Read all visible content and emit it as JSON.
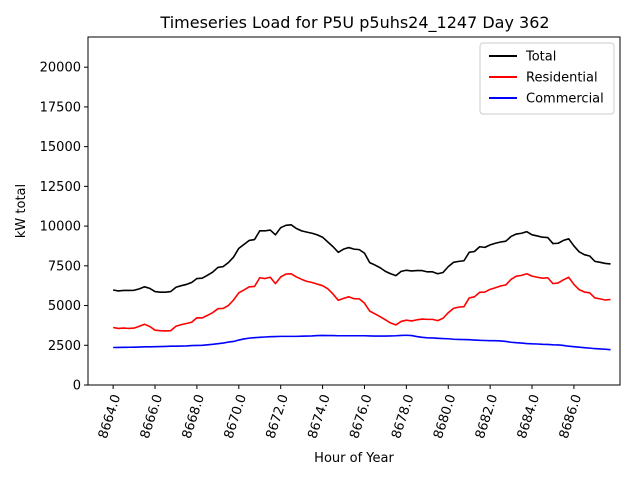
{
  "chart_data": {
    "type": "line",
    "title": "Timeseries Load for P5U p5uhs24_1247  Day 362",
    "xlabel": "Hour of Year",
    "ylabel": "kW total",
    "xlim": [
      8662.8,
      8688.2
    ],
    "ylim": [
      0,
      21900
    ],
    "x_ticks": [
      8664,
      8666,
      8668,
      8670,
      8672,
      8674,
      8676,
      8678,
      8680,
      8682,
      8684,
      8686
    ],
    "x_tick_labels": [
      "8664.0",
      "8666.0",
      "8668.0",
      "8670.0",
      "8672.0",
      "8674.0",
      "8676.0",
      "8678.0",
      "8680.0",
      "8682.0",
      "8684.0",
      "8686.0"
    ],
    "y_ticks": [
      0,
      2500,
      5000,
      7500,
      10000,
      12500,
      15000,
      17500,
      20000
    ],
    "y_tick_labels": [
      "0",
      "2500",
      "5000",
      "7500",
      "10000",
      "12500",
      "15000",
      "17500",
      "20000"
    ],
    "legend_position": "top-right",
    "x": [
      8664.0,
      8664.25,
      8664.5,
      8664.75,
      8665.0,
      8665.25,
      8665.5,
      8665.75,
      8666.0,
      8666.25,
      8666.5,
      8666.75,
      8667.0,
      8667.25,
      8667.5,
      8667.75,
      8668.0,
      8668.25,
      8668.5,
      8668.75,
      8669.0,
      8669.25,
      8669.5,
      8669.75,
      8670.0,
      8670.25,
      8670.5,
      8670.75,
      8671.0,
      8671.25,
      8671.5,
      8671.75,
      8672.0,
      8672.25,
      8672.5,
      8672.75,
      8673.0,
      8673.25,
      8673.5,
      8673.75,
      8674.0,
      8674.25,
      8674.5,
      8674.75,
      8675.0,
      8675.25,
      8675.5,
      8675.75,
      8676.0,
      8676.25,
      8676.5,
      8676.75,
      8677.0,
      8677.25,
      8677.5,
      8677.75,
      8678.0,
      8678.25,
      8678.5,
      8678.75,
      8679.0,
      8679.25,
      8679.5,
      8679.75,
      8680.0,
      8680.25,
      8680.5,
      8680.75,
      8681.0,
      8681.25,
      8681.5,
      8681.75,
      8682.0,
      8682.25,
      8682.5,
      8682.75,
      8683.0,
      8683.25,
      8683.5,
      8683.75,
      8684.0,
      8684.25,
      8684.5,
      8684.75,
      8685.0,
      8685.25,
      8685.5,
      8685.75,
      8686.0,
      8686.25,
      8686.5,
      8686.75,
      8687.0,
      8687.25,
      8687.5,
      8687.75
    ],
    "series": [
      {
        "name": "Total",
        "color": "#000000",
        "values": [
          5980,
          5920,
          5950,
          5950,
          5960,
          6050,
          6180,
          6080,
          5880,
          5840,
          5840,
          5880,
          6150,
          6250,
          6330,
          6450,
          6700,
          6720,
          6900,
          7100,
          7400,
          7450,
          7700,
          8050,
          8600,
          8850,
          9100,
          9150,
          9700,
          9700,
          9750,
          9450,
          9900,
          10050,
          10080,
          9850,
          9700,
          9620,
          9550,
          9450,
          9300,
          9000,
          8700,
          8350,
          8550,
          8650,
          8550,
          8520,
          8300,
          7700,
          7550,
          7380,
          7150,
          7000,
          6880,
          7150,
          7220,
          7180,
          7200,
          7200,
          7120,
          7120,
          7000,
          7080,
          7450,
          7720,
          7780,
          7820,
          8350,
          8400,
          8700,
          8660,
          8820,
          8920,
          9000,
          9050,
          9350,
          9500,
          9550,
          9650,
          9450,
          9380,
          9300,
          9280,
          8900,
          8920,
          9100,
          9200,
          8750,
          8380,
          8200,
          8120,
          7780,
          7720,
          7650,
          7620
        ]
      },
      {
        "name": "Residential",
        "color": "#ff0000",
        "values": [
          3620,
          3560,
          3580,
          3560,
          3580,
          3700,
          3820,
          3680,
          3450,
          3420,
          3400,
          3420,
          3700,
          3800,
          3870,
          3950,
          4230,
          4220,
          4380,
          4550,
          4800,
          4820,
          5000,
          5350,
          5800,
          5980,
          6180,
          6200,
          6750,
          6700,
          6780,
          6380,
          6800,
          6980,
          7000,
          6800,
          6650,
          6520,
          6450,
          6350,
          6250,
          6050,
          5720,
          5330,
          5450,
          5550,
          5430,
          5420,
          5150,
          4650,
          4480,
          4300,
          4100,
          3900,
          3780,
          4000,
          4080,
          4030,
          4100,
          4150,
          4130,
          4130,
          4050,
          4200,
          4550,
          4820,
          4900,
          4930,
          5480,
          5550,
          5830,
          5850,
          6020,
          6120,
          6230,
          6300,
          6650,
          6850,
          6900,
          7000,
          6850,
          6780,
          6720,
          6750,
          6380,
          6420,
          6620,
          6780,
          6330,
          6000,
          5850,
          5800,
          5480,
          5420,
          5350,
          5380
        ]
      },
      {
        "name": "Commercial",
        "color": "#0000ff",
        "values": [
          2360,
          2365,
          2370,
          2375,
          2380,
          2390,
          2400,
          2405,
          2410,
          2420,
          2430,
          2440,
          2445,
          2450,
          2460,
          2480,
          2490,
          2500,
          2530,
          2560,
          2600,
          2640,
          2700,
          2740,
          2830,
          2900,
          2950,
          2980,
          3000,
          3020,
          3040,
          3050,
          3060,
          3060,
          3060,
          3060,
          3070,
          3080,
          3090,
          3110,
          3120,
          3110,
          3110,
          3100,
          3100,
          3100,
          3100,
          3100,
          3100,
          3090,
          3080,
          3080,
          3080,
          3090,
          3100,
          3120,
          3130,
          3110,
          3050,
          3000,
          2970,
          2960,
          2940,
          2920,
          2910,
          2880,
          2870,
          2860,
          2850,
          2830,
          2810,
          2800,
          2790,
          2790,
          2770,
          2740,
          2690,
          2660,
          2640,
          2610,
          2590,
          2580,
          2560,
          2550,
          2530,
          2520,
          2490,
          2440,
          2410,
          2380,
          2350,
          2320,
          2290,
          2270,
          2250,
          2220
        ]
      }
    ]
  }
}
